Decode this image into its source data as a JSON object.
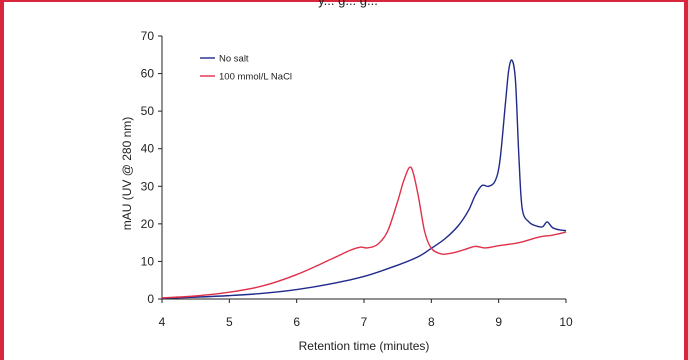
{
  "top_caption": "y... g... g...",
  "chart_data": {
    "type": "line",
    "title": "",
    "xlabel": "Retention time (minutes)",
    "ylabel": "mAU (UV @ 280 nm)",
    "xlim": [
      4,
      10
    ],
    "ylim": [
      0,
      70
    ],
    "x_ticks": [
      "4",
      "5",
      "6",
      "7",
      "8",
      "9",
      "10"
    ],
    "y_ticks": [
      "0",
      "10",
      "20",
      "30",
      "40",
      "50",
      "60",
      "70"
    ],
    "grid": false,
    "legend_position": "top-left",
    "series": [
      {
        "name": "No salt",
        "color": "#1f2a8a",
        "x": [
          4.0,
          4.5,
          5.0,
          5.5,
          6.0,
          6.5,
          7.0,
          7.5,
          7.8,
          8.0,
          8.2,
          8.4,
          8.55,
          8.65,
          8.75,
          8.85,
          8.95,
          9.02,
          9.1,
          9.15,
          9.2,
          9.25,
          9.3,
          9.35,
          9.45,
          9.55,
          9.65,
          9.72,
          9.8,
          9.9,
          10.0
        ],
        "y": [
          0.2,
          0.5,
          0.9,
          1.5,
          2.5,
          4.0,
          6.0,
          9.0,
          11.2,
          13.5,
          16.0,
          19.5,
          23.5,
          27.5,
          30.2,
          30.0,
          31.5,
          37.0,
          52.0,
          61.0,
          63.5,
          58.0,
          38.0,
          24.0,
          20.5,
          19.5,
          19.2,
          20.5,
          19.0,
          18.4,
          18.2
        ]
      },
      {
        "name": "100 mmol/L NaCl",
        "color": "#e0304a",
        "x": [
          4.0,
          4.5,
          5.0,
          5.5,
          6.0,
          6.5,
          6.8,
          6.95,
          7.05,
          7.2,
          7.35,
          7.5,
          7.6,
          7.7,
          7.8,
          7.9,
          8.0,
          8.15,
          8.3,
          8.5,
          8.65,
          8.8,
          9.0,
          9.3,
          9.6,
          9.8,
          10.0
        ],
        "y": [
          0.3,
          0.8,
          1.8,
          3.5,
          6.5,
          10.5,
          13.0,
          13.8,
          13.6,
          14.5,
          18.0,
          26.0,
          32.0,
          35.0,
          28.0,
          18.0,
          13.5,
          12.0,
          12.2,
          13.2,
          14.0,
          13.6,
          14.2,
          15.0,
          16.5,
          17.0,
          17.8
        ]
      }
    ]
  }
}
